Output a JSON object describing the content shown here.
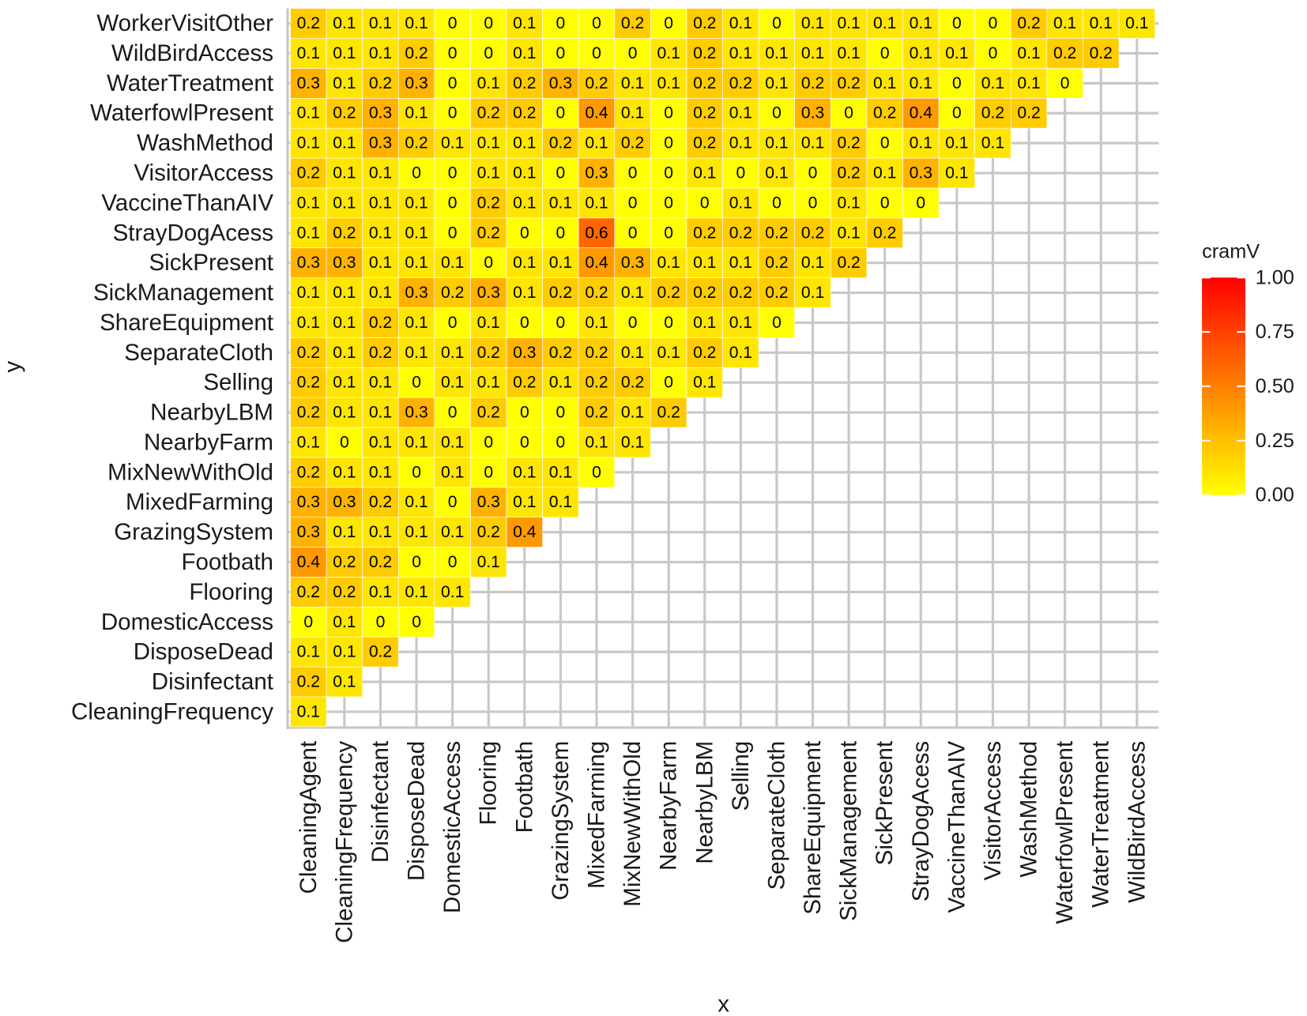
{
  "chart_data": {
    "type": "heatmap",
    "x_label": "x",
    "y_label": "y",
    "legend_title": "cramV",
    "categories": [
      "CleaningAgent",
      "CleaningFrequency",
      "Disinfectant",
      "DisposeDead",
      "DomesticAccess",
      "Flooring",
      "Footbath",
      "GrazingSystem",
      "MixedFarming",
      "MixNewWithOld",
      "NearbyFarm",
      "NearbyLBM",
      "Selling",
      "SeparateCloth",
      "ShareEquipment",
      "SickManagement",
      "SickPresent",
      "StrayDogAcess",
      "VaccineThanAIV",
      "VisitorAccess",
      "WashMethod",
      "WaterfowlPresent",
      "WaterTreatment",
      "WildBirdAccess"
    ],
    "y_categories": [
      "CleaningFrequency",
      "Disinfectant",
      "DisposeDead",
      "DomesticAccess",
      "Flooring",
      "Footbath",
      "GrazingSystem",
      "MixedFarming",
      "MixNewWithOld",
      "NearbyFarm",
      "NearbyLBM",
      "Selling",
      "SeparateCloth",
      "ShareEquipment",
      "SickManagement",
      "SickPresent",
      "StrayDogAcess",
      "VaccineThanAIV",
      "VisitorAccess",
      "WashMethod",
      "WaterfowlPresent",
      "WaterTreatment",
      "WildBirdAccess",
      "WorkerVisitOther"
    ],
    "z": [
      [
        0.1,
        null,
        null,
        null,
        null,
        null,
        null,
        null,
        null,
        null,
        null,
        null,
        null,
        null,
        null,
        null,
        null,
        null,
        null,
        null,
        null,
        null,
        null,
        null
      ],
      [
        0.2,
        0.1,
        null,
        null,
        null,
        null,
        null,
        null,
        null,
        null,
        null,
        null,
        null,
        null,
        null,
        null,
        null,
        null,
        null,
        null,
        null,
        null,
        null,
        null
      ],
      [
        0.1,
        0.1,
        0.2,
        null,
        null,
        null,
        null,
        null,
        null,
        null,
        null,
        null,
        null,
        null,
        null,
        null,
        null,
        null,
        null,
        null,
        null,
        null,
        null,
        null
      ],
      [
        0,
        0.1,
        0,
        0,
        null,
        null,
        null,
        null,
        null,
        null,
        null,
        null,
        null,
        null,
        null,
        null,
        null,
        null,
        null,
        null,
        null,
        null,
        null,
        null
      ],
      [
        0.2,
        0.2,
        0.1,
        0.1,
        0.1,
        null,
        null,
        null,
        null,
        null,
        null,
        null,
        null,
        null,
        null,
        null,
        null,
        null,
        null,
        null,
        null,
        null,
        null,
        null
      ],
      [
        0.4,
        0.2,
        0.2,
        0,
        0,
        0.1,
        null,
        null,
        null,
        null,
        null,
        null,
        null,
        null,
        null,
        null,
        null,
        null,
        null,
        null,
        null,
        null,
        null,
        null
      ],
      [
        0.3,
        0.1,
        0.1,
        0.1,
        0.1,
        0.2,
        0.4,
        null,
        null,
        null,
        null,
        null,
        null,
        null,
        null,
        null,
        null,
        null,
        null,
        null,
        null,
        null,
        null,
        null
      ],
      [
        0.3,
        0.3,
        0.2,
        0.1,
        0,
        0.3,
        0.1,
        0.1,
        null,
        null,
        null,
        null,
        null,
        null,
        null,
        null,
        null,
        null,
        null,
        null,
        null,
        null,
        null,
        null
      ],
      [
        0.2,
        0.1,
        0.1,
        0,
        0.1,
        0,
        0.1,
        0.1,
        0,
        null,
        null,
        null,
        null,
        null,
        null,
        null,
        null,
        null,
        null,
        null,
        null,
        null,
        null,
        null
      ],
      [
        0.1,
        0,
        0.1,
        0.1,
        0.1,
        0,
        0,
        0,
        0.1,
        0.1,
        null,
        null,
        null,
        null,
        null,
        null,
        null,
        null,
        null,
        null,
        null,
        null,
        null,
        null
      ],
      [
        0.2,
        0.1,
        0.1,
        0.3,
        0,
        0.2,
        0,
        0,
        0.2,
        0.1,
        0.2,
        null,
        null,
        null,
        null,
        null,
        null,
        null,
        null,
        null,
        null,
        null,
        null,
        null
      ],
      [
        0.2,
        0.1,
        0.1,
        0,
        0.1,
        0.1,
        0.2,
        0.1,
        0.2,
        0.2,
        0,
        0.1,
        null,
        null,
        null,
        null,
        null,
        null,
        null,
        null,
        null,
        null,
        null,
        null
      ],
      [
        0.2,
        0.1,
        0.2,
        0.1,
        0.1,
        0.2,
        0.3,
        0.2,
        0.2,
        0.1,
        0.1,
        0.2,
        0.1,
        null,
        null,
        null,
        null,
        null,
        null,
        null,
        null,
        null,
        null,
        null
      ],
      [
        0.1,
        0.1,
        0.2,
        0.1,
        0,
        0.1,
        0,
        0,
        0.1,
        0,
        0,
        0.1,
        0.1,
        0,
        null,
        null,
        null,
        null,
        null,
        null,
        null,
        null,
        null,
        null
      ],
      [
        0.1,
        0.1,
        0.1,
        0.3,
        0.2,
        0.3,
        0.1,
        0.2,
        0.2,
        0.1,
        0.2,
        0.2,
        0.2,
        0.2,
        0.1,
        null,
        null,
        null,
        null,
        null,
        null,
        null,
        null,
        null
      ],
      [
        0.3,
        0.3,
        0.1,
        0.1,
        0.1,
        0,
        0.1,
        0.1,
        0.4,
        0.3,
        0.1,
        0.1,
        0.1,
        0.2,
        0.1,
        0.2,
        null,
        null,
        null,
        null,
        null,
        null,
        null,
        null
      ],
      [
        0.1,
        0.2,
        0.1,
        0.1,
        0,
        0.2,
        0,
        0,
        0.6,
        0,
        0,
        0.2,
        0.2,
        0.2,
        0.2,
        0.1,
        0.2,
        null,
        null,
        null,
        null,
        null,
        null,
        null
      ],
      [
        0.1,
        0.1,
        0.1,
        0.1,
        0,
        0.2,
        0.1,
        0.1,
        0.1,
        0,
        0,
        0,
        0.1,
        0,
        0,
        0.1,
        0,
        0,
        null,
        null,
        null,
        null,
        null,
        null
      ],
      [
        0.2,
        0.1,
        0.1,
        0,
        0,
        0.1,
        0.1,
        0,
        0.3,
        0,
        0,
        0.1,
        0,
        0.1,
        0,
        0.2,
        0.1,
        0.3,
        0.1,
        null,
        null,
        null,
        null,
        null
      ],
      [
        0.1,
        0.1,
        0.3,
        0.2,
        0.1,
        0.1,
        0.1,
        0.2,
        0.1,
        0.2,
        0,
        0.2,
        0.1,
        0.1,
        0.1,
        0.2,
        0,
        0.1,
        0.1,
        0.1,
        null,
        null,
        null,
        null
      ],
      [
        0.1,
        0.2,
        0.3,
        0.1,
        0,
        0.2,
        0.2,
        0,
        0.4,
        0.1,
        0,
        0.2,
        0.1,
        0,
        0.3,
        0,
        0.2,
        0.4,
        0,
        0.2,
        0.2,
        null,
        null,
        null
      ],
      [
        0.3,
        0.1,
        0.2,
        0.3,
        0,
        0.1,
        0.2,
        0.3,
        0.2,
        0.1,
        0.1,
        0.2,
        0.2,
        0.1,
        0.2,
        0.2,
        0.1,
        0.1,
        0,
        0.1,
        0.1,
        0,
        null,
        null
      ],
      [
        0.1,
        0.1,
        0.1,
        0.2,
        0,
        0,
        0.1,
        0,
        0,
        0,
        0.1,
        0.2,
        0.1,
        0.1,
        0.1,
        0.1,
        0,
        0.1,
        0.1,
        0,
        0.1,
        0.2,
        0.2,
        null
      ],
      [
        0.2,
        0.1,
        0.1,
        0.1,
        0,
        0,
        0.1,
        0,
        0,
        0.2,
        0,
        0.2,
        0.1,
        0,
        0.1,
        0.1,
        0.1,
        0.1,
        0,
        0,
        0.2,
        0.1,
        0.1,
        0.1
      ]
    ],
    "zlim": [
      0,
      1
    ],
    "zticks": [
      {
        "value": 0,
        "label": "0.00"
      },
      {
        "value": 0.25,
        "label": "0.25"
      },
      {
        "value": 0.5,
        "label": "0.50"
      },
      {
        "value": 0.75,
        "label": "0.75"
      },
      {
        "value": 1,
        "label": "1.00"
      }
    ],
    "low_color": "#FFFF00",
    "high_color": "#FF0000",
    "grid": true
  }
}
